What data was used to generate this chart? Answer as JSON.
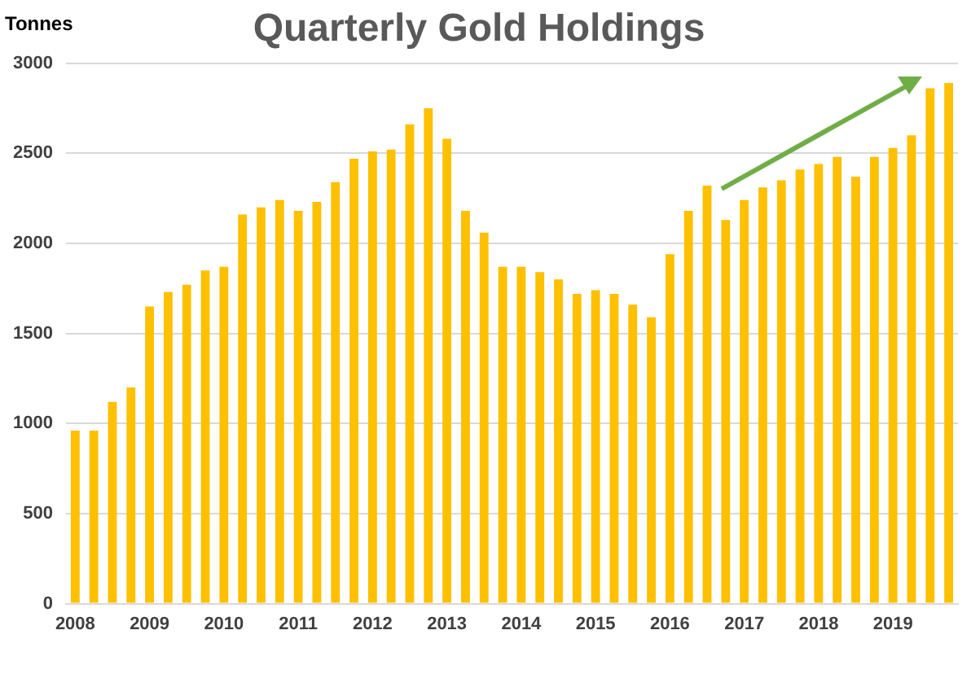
{
  "chart_data": {
    "type": "bar",
    "title": "Quarterly Gold Holdings",
    "ylabel": "Tonnes",
    "categories": [
      "2008",
      null,
      null,
      null,
      "2009",
      null,
      null,
      null,
      "2010",
      null,
      null,
      null,
      "2011",
      null,
      null,
      null,
      "2012",
      null,
      null,
      null,
      "2013",
      null,
      null,
      null,
      "2014",
      null,
      null,
      null,
      "2015",
      null,
      null,
      null,
      "2016",
      null,
      null,
      null,
      "2017",
      null,
      null,
      null,
      "2018",
      null,
      null,
      null,
      "2019",
      null,
      null,
      null
    ],
    "values": [
      960,
      960,
      1120,
      1200,
      1650,
      1730,
      1770,
      1850,
      1870,
      2160,
      2200,
      2240,
      2180,
      2230,
      2340,
      2470,
      2510,
      2520,
      2660,
      2750,
      2580,
      2180,
      2060,
      1870,
      1870,
      1840,
      1800,
      1720,
      1740,
      1720,
      1660,
      1590,
      1940,
      2180,
      2320,
      2130,
      2240,
      2310,
      2350,
      2410,
      2440,
      2480,
      2370,
      2480,
      2530,
      2600,
      2860,
      2890
    ],
    "color": "#ffc000",
    "ylim": [
      0,
      3000
    ],
    "yticks": [
      0,
      500,
      1000,
      1500,
      2000,
      2500,
      3000
    ],
    "grid": "y"
  }
}
